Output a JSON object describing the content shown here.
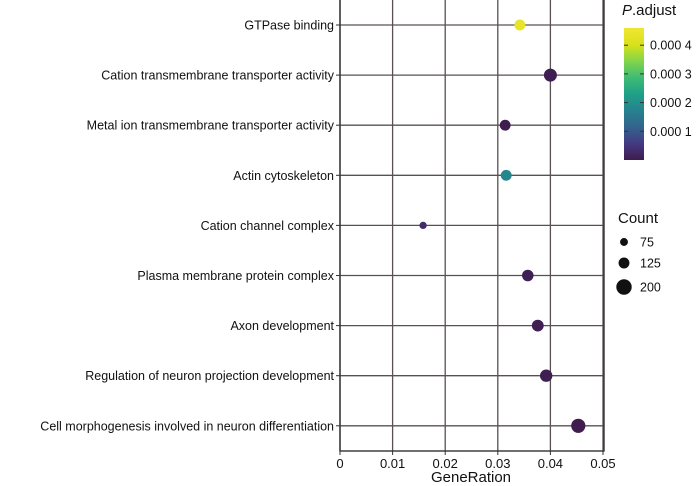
{
  "chart_data": {
    "type": "scatter",
    "subtype": "dot-plot",
    "title": "",
    "xlabel": "GeneRation",
    "ylabel": "",
    "xlim": [
      0,
      0.05
    ],
    "xticks": [
      0,
      0.01,
      0.02,
      0.03,
      0.04,
      0.05
    ],
    "xtick_labels": [
      "0",
      "0.01",
      "0.02",
      "0.03",
      "0.04",
      "0.05"
    ],
    "grid": true,
    "categories": [
      "GTPase binding",
      "Cation transmembrane transporter activity",
      "Metal ion transmembrane transporter activity",
      "Actin cytoskeleton",
      "Cation channel complex",
      "Plasma membrane protein complex",
      "Axon development",
      "Regulation of neuron projection development",
      "Cell morphogenesis involved in neuron differentiation"
    ],
    "points": [
      {
        "term": "GTPase binding",
        "gene_ratio": 0.0342,
        "p_adjust": 0.00044,
        "count": 125
      },
      {
        "term": "Cation transmembrane transporter activity",
        "gene_ratio": 0.04,
        "p_adjust": 5e-06,
        "count": 160
      },
      {
        "term": "Metal ion transmembrane transporter activity",
        "gene_ratio": 0.0314,
        "p_adjust": 3e-06,
        "count": 125
      },
      {
        "term": "Actin cytoskeleton",
        "gene_ratio": 0.0316,
        "p_adjust": 0.00018,
        "count": 125
      },
      {
        "term": "Cation channel complex",
        "gene_ratio": 0.0158,
        "p_adjust": 3e-05,
        "count": 65
      },
      {
        "term": "Plasma membrane protein complex",
        "gene_ratio": 0.0357,
        "p_adjust": 8e-06,
        "count": 135
      },
      {
        "term": "Axon development",
        "gene_ratio": 0.0376,
        "p_adjust": 6e-06,
        "count": 140
      },
      {
        "term": "Regulation of neuron projection development",
        "gene_ratio": 0.0392,
        "p_adjust": 5e-06,
        "count": 150
      },
      {
        "term": "Cell morphogenesis involved in neuron differentiation",
        "gene_ratio": 0.0453,
        "p_adjust": 2e-06,
        "count": 180
      }
    ],
    "color_legend": {
      "title_italic": "P",
      "title_rest": ".adjust",
      "range": [
        0,
        0.00046
      ],
      "ticks": [
        0.0001,
        0.0002,
        0.0003,
        0.0004
      ],
      "tick_labels": [
        "0.000 1",
        "0.000 2",
        "0.000 3",
        "0.000 4"
      ],
      "colormap": [
        "#3f1c4c",
        "#443a83",
        "#33638d",
        "#26828e",
        "#1fa088",
        "#3fbc73",
        "#84d44b",
        "#d8e219",
        "#f1e434"
      ],
      "placement": "top-right"
    },
    "size_legend": {
      "title": "Count",
      "values": [
        75,
        125,
        200
      ],
      "labels": [
        "75",
        "125",
        "200"
      ],
      "placement": "right"
    }
  }
}
